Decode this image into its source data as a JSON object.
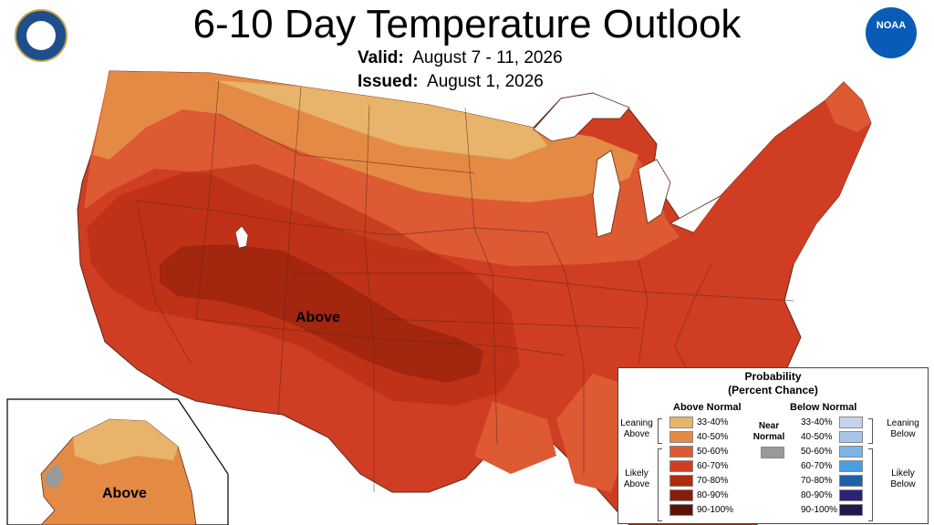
{
  "header": {
    "title": "6-10 Day Temperature Outlook",
    "valid_label": "Valid:",
    "valid_value": "August 7 - 11, 2026",
    "issued_label": "Issued:",
    "issued_value": "August 1, 2026"
  },
  "logos": {
    "left": "department-of-commerce-seal",
    "right": "noaa-logo",
    "noaa_text": "NOAA"
  },
  "map": {
    "conus_label": "Above",
    "alaska_label": "Above"
  },
  "legend": {
    "title": "Probability",
    "subtitle": "(Percent Chance)",
    "above_title": "Above Normal",
    "below_title": "Below Normal",
    "near_normal": "Near Normal",
    "near_color": "#999999",
    "leaning_above": "Leaning Above",
    "likely_above": "Likely Above",
    "leaning_below": "Leaning Below",
    "likely_below": "Likely Below",
    "above": [
      {
        "label": "33-40%",
        "color": "#e8b36a"
      },
      {
        "label": "40-50%",
        "color": "#e48a45"
      },
      {
        "label": "50-60%",
        "color": "#dd5a32"
      },
      {
        "label": "60-70%",
        "color": "#cf3d22"
      },
      {
        "label": "70-80%",
        "color": "#b52a0f"
      },
      {
        "label": "80-90%",
        "color": "#8b1d0a"
      },
      {
        "label": "90-100%",
        "color": "#5e1206"
      }
    ],
    "below": [
      {
        "label": "33-40%",
        "color": "#c5d4ee"
      },
      {
        "label": "40-50%",
        "color": "#a7c4ea"
      },
      {
        "label": "50-60%",
        "color": "#79b5e8"
      },
      {
        "label": "60-70%",
        "color": "#4a9fe0"
      },
      {
        "label": "70-80%",
        "color": "#1f5fa8"
      },
      {
        "label": "80-90%",
        "color": "#2c2378"
      },
      {
        "label": "90-100%",
        "color": "#24174f"
      }
    ]
  }
}
